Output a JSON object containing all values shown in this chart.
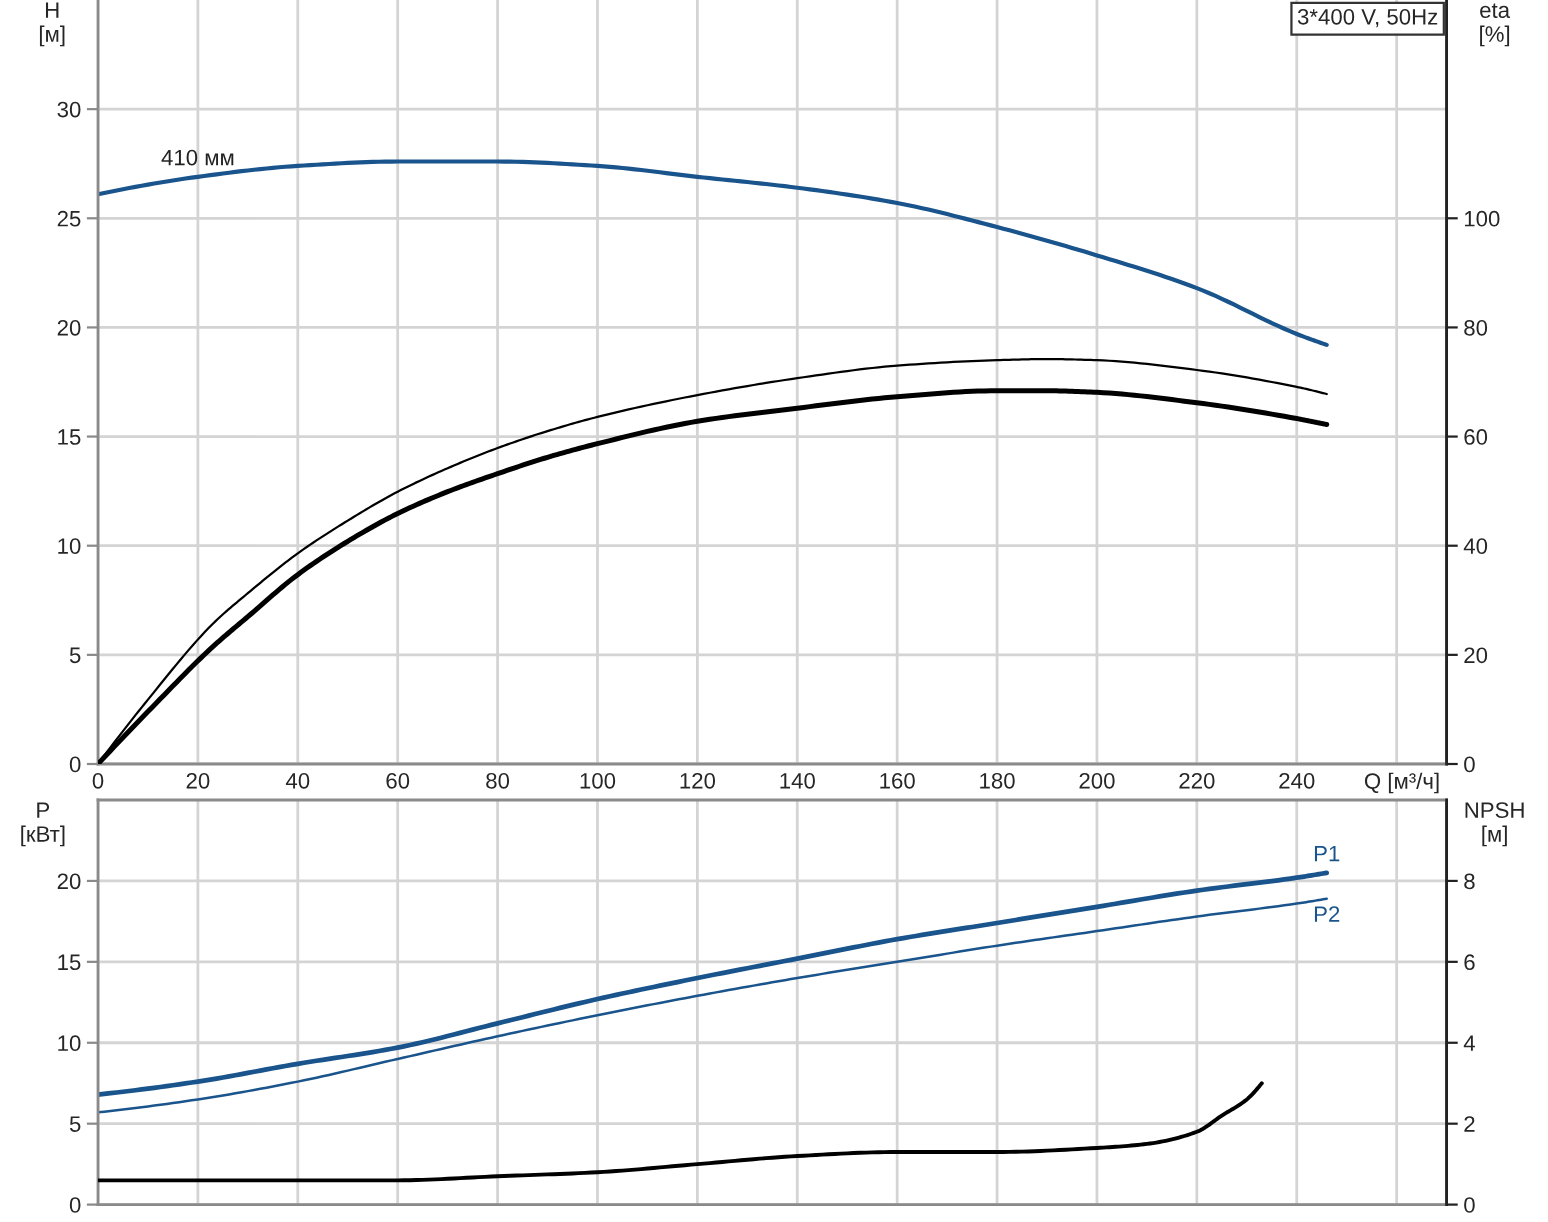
{
  "chart_data": [
    {
      "type": "line",
      "title": "3*400 V, 50Hz",
      "xlabel": "Q [м³/ч]",
      "ylabel": "H\n[м]",
      "y2label": "eta\n[%]",
      "xlim": [
        0,
        270
      ],
      "xticks": [
        0,
        20,
        40,
        60,
        80,
        100,
        120,
        140,
        160,
        180,
        200,
        220,
        240,
        {
          "value": 260,
          "label": null
        }
      ],
      "ylim": [
        0,
        35
      ],
      "yticks": [
        0,
        5,
        10,
        15,
        20,
        25,
        30
      ],
      "y2lim": [
        0,
        140
      ],
      "y2ticks": [
        0,
        20,
        40,
        60,
        80,
        100
      ],
      "grid": true,
      "series": [
        {
          "name": "410 мм",
          "color": "#1a548c",
          "x": [
            0,
            20,
            40,
            60,
            80,
            100,
            120,
            140,
            160,
            180,
            200,
            220,
            240,
            246
          ],
          "values": [
            26.1,
            26.9,
            27.4,
            27.6,
            27.6,
            27.4,
            26.9,
            26.4,
            25.7,
            24.6,
            23.3,
            21.8,
            19.7,
            19.2
          ]
        },
        {
          "color": "#000000",
          "axis": "y2",
          "x": [
            0,
            10,
            23,
            30,
            40,
            50,
            60,
            70,
            80,
            90,
            100,
            120,
            140,
            160,
            180,
            190,
            200,
            220,
            240,
            246
          ],
          "values": [
            0,
            11.8,
            25.7,
            31.3,
            38.6,
            44.6,
            49.9,
            54.2,
            57.9,
            61.0,
            63.6,
            67.6,
            70.7,
            73.0,
            74.0,
            74.2,
            74.0,
            72.2,
            69.1,
            67.8
          ]
        },
        {
          "color": "#000000",
          "axis": "y2",
          "x": [
            0,
            10,
            23,
            30,
            40,
            50,
            60,
            70,
            80,
            90,
            100,
            120,
            140,
            160,
            180,
            190,
            200,
            220,
            240,
            246
          ],
          "values": [
            0,
            9.6,
            21.5,
            27.0,
            34.7,
            40.8,
            45.9,
            49.9,
            53.2,
            56.2,
            58.7,
            62.8,
            65.2,
            67.3,
            68.4,
            68.4,
            68.1,
            66.2,
            63.3,
            62.2
          ]
        }
      ]
    },
    {
      "type": "line",
      "ylabel": "P\n[кВт]",
      "y2label": "NPSH\n[м]",
      "xlim": [
        0,
        270
      ],
      "xticks": [
        0,
        20,
        40,
        60,
        80,
        100,
        120,
        140,
        160,
        180,
        200,
        220,
        240,
        {
          "value": 260,
          "label": null
        }
      ],
      "ylim": [
        0,
        25
      ],
      "yticks": [
        0,
        5,
        10,
        15,
        20
      ],
      "y2lim": [
        0,
        10
      ],
      "y2ticks": [
        0,
        2,
        4,
        6,
        8
      ],
      "grid": true,
      "tick_labels": "y",
      "series": [
        {
          "name": "P1",
          "color": "#1a548c",
          "x": [
            0,
            20,
            40,
            60,
            80,
            100,
            120,
            140,
            160,
            180,
            200,
            220,
            240,
            246
          ],
          "values": [
            6.8,
            7.6,
            8.7,
            9.7,
            11.2,
            12.7,
            14.0,
            15.2,
            16.4,
            17.4,
            18.4,
            19.4,
            20.2,
            20.5
          ]
        },
        {
          "name": "P2",
          "color": "#1a548c",
          "x": [
            0,
            20,
            40,
            60,
            80,
            100,
            120,
            140,
            160,
            180,
            200,
            220,
            240,
            246
          ],
          "values": [
            5.7,
            6.5,
            7.6,
            9.0,
            10.4,
            11.7,
            12.9,
            14.0,
            15.0,
            16.0,
            16.9,
            17.8,
            18.6,
            18.9
          ]
        },
        {
          "color": "#000000",
          "axis": "y2",
          "x": [
            0,
            20,
            40,
            60,
            80,
            100,
            120,
            140,
            160,
            180,
            200,
            210,
            220,
            225,
            230,
            233
          ],
          "values": [
            0.6,
            0.6,
            0.6,
            0.6,
            0.7,
            0.8,
            1.0,
            1.2,
            1.3,
            1.3,
            1.4,
            1.5,
            1.8,
            2.2,
            2.6,
            3.0
          ]
        }
      ]
    }
  ]
}
